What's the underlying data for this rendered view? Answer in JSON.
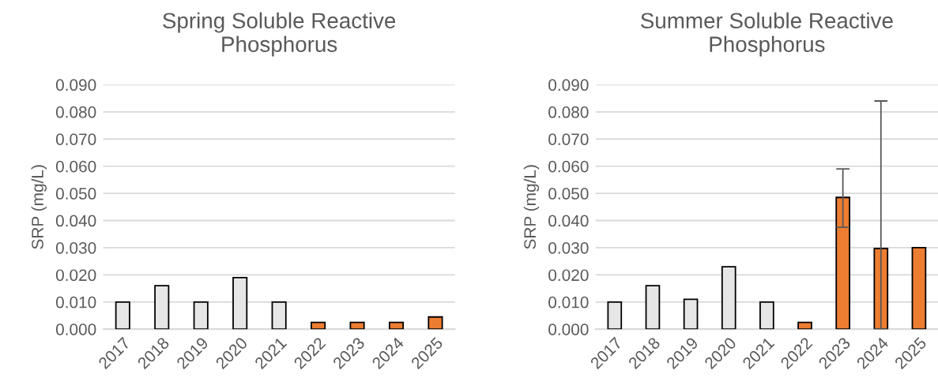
{
  "chart_data": [
    {
      "type": "bar",
      "title": "Spring Soluble Reactive\nPhosphorus",
      "ylabel": "SRP (mg/L)",
      "categories": [
        "2017",
        "2018",
        "2019",
        "2020",
        "2021",
        "2022",
        "2023",
        "2024",
        "2025"
      ],
      "values": [
        0.01,
        0.016,
        0.01,
        0.019,
        0.01,
        0.0025,
        0.0025,
        0.0025,
        0.0045
      ],
      "colors": [
        "#e7e6e6",
        "#e7e6e6",
        "#e7e6e6",
        "#e7e6e6",
        "#e7e6e6",
        "#ed7d31",
        "#ed7d31",
        "#ed7d31",
        "#ed7d31"
      ],
      "ylim": [
        0,
        0.09
      ],
      "yticks": [
        {
          "value": 0,
          "label": "0.000"
        },
        {
          "value": 0.01,
          "label": "0.010"
        },
        {
          "value": 0.02,
          "label": "0.020"
        },
        {
          "value": 0.03,
          "label": "0.030"
        },
        {
          "value": 0.04,
          "label": "0.040"
        },
        {
          "value": 0.05,
          "label": "0.050"
        },
        {
          "value": 0.06,
          "label": "0.060"
        },
        {
          "value": 0.07,
          "label": "0.070"
        },
        {
          "value": 0.08,
          "label": "0.080"
        },
        {
          "value": 0.09,
          "label": "0.090"
        }
      ],
      "grid": "y",
      "legend": false
    },
    {
      "type": "bar",
      "title": "Summer Soluble Reactive\nPhosphorus",
      "ylabel": "SRP (mg/L)",
      "categories": [
        "2017",
        "2018",
        "2019",
        "2020",
        "2021",
        "2022",
        "2023",
        "2024",
        "2025"
      ],
      "values": [
        0.01,
        0.016,
        0.011,
        0.023,
        0.01,
        0.0025,
        0.0485,
        0.0297,
        0.03
      ],
      "errors": [
        null,
        null,
        null,
        null,
        null,
        null,
        [
          0.0375,
          0.059
        ],
        [
          0,
          0.084
        ],
        null
      ],
      "colors": [
        "#e7e6e6",
        "#e7e6e6",
        "#e7e6e6",
        "#e7e6e6",
        "#e7e6e6",
        "#ed7d31",
        "#ed7d31",
        "#ed7d31",
        "#ed7d31"
      ],
      "ylim": [
        0,
        0.09
      ],
      "yticks": [
        {
          "value": 0,
          "label": "0.000"
        },
        {
          "value": 0.01,
          "label": "0.010"
        },
        {
          "value": 0.02,
          "label": "0.020"
        },
        {
          "value": 0.03,
          "label": "0.030"
        },
        {
          "value": 0.04,
          "label": "0.040"
        },
        {
          "value": 0.05,
          "label": "0.050"
        },
        {
          "value": 0.06,
          "label": "0.060"
        },
        {
          "value": 0.07,
          "label": "0.070"
        },
        {
          "value": 0.08,
          "label": "0.080"
        },
        {
          "value": 0.09,
          "label": "0.090"
        }
      ],
      "grid": "y",
      "legend": false
    }
  ]
}
